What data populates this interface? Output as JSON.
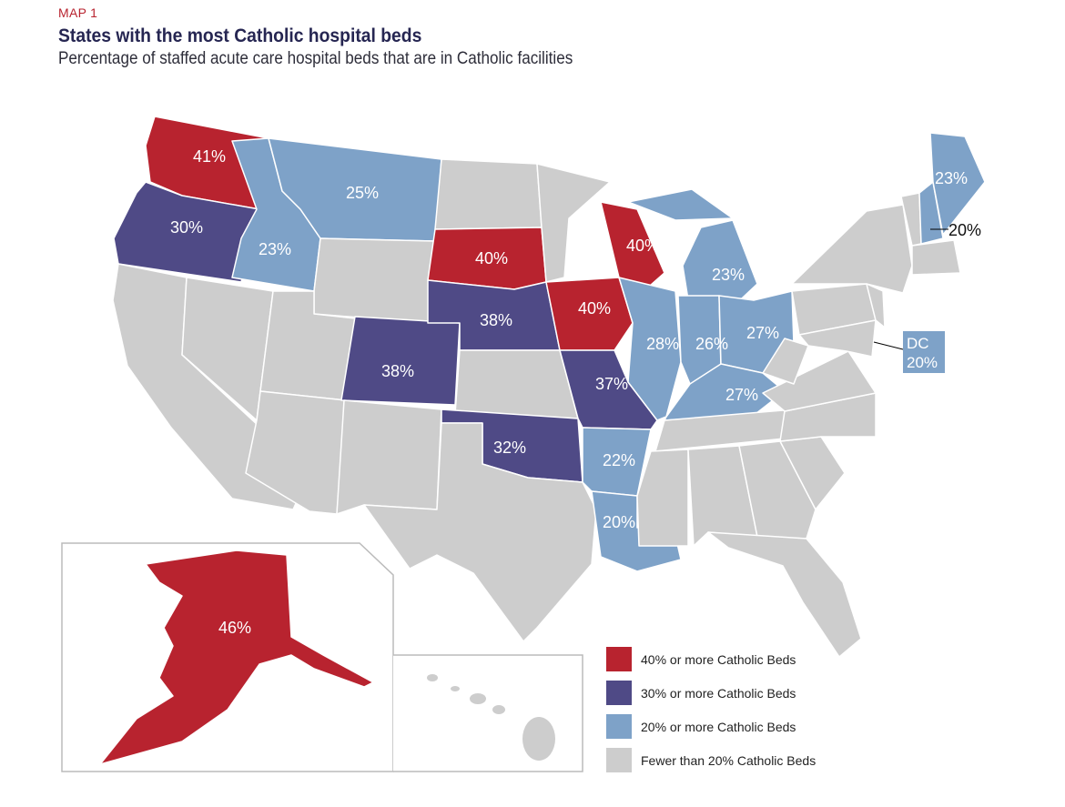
{
  "header": {
    "kicker": "MAP 1",
    "title": "States with the most Catholic hospital beds",
    "subtitle": "Percentage of staffed acute care hospital beds that are in Catholic facilities"
  },
  "colors": {
    "c40": "#b8232f",
    "c30": "#4f4a86",
    "c20": "#7ea2c8",
    "other": "#cdcdcd"
  },
  "legend": [
    {
      "key": "c40",
      "label": "40% or more Catholic Beds"
    },
    {
      "key": "c30",
      "label": "30% or more Catholic Beds"
    },
    {
      "key": "c20",
      "label": "20% or more Catholic Beds"
    },
    {
      "key": "other",
      "label": "Fewer than 20% Catholic Beds"
    }
  ],
  "states": {
    "WA": {
      "value": "41%",
      "cat": "c40"
    },
    "OR": {
      "value": "30%",
      "cat": "c30"
    },
    "MT": {
      "value": "25%",
      "cat": "c20"
    },
    "ID": {
      "value": "23%",
      "cat": "c20"
    },
    "SD": {
      "value": "40%",
      "cat": "c40"
    },
    "NE": {
      "value": "38%",
      "cat": "c30"
    },
    "CO": {
      "value": "38%",
      "cat": "c30"
    },
    "IA": {
      "value": "40%",
      "cat": "c40"
    },
    "WI": {
      "value": "40%",
      "cat": "c40"
    },
    "MI": {
      "value": "23%",
      "cat": "c20"
    },
    "IL": {
      "value": "28%",
      "cat": "c20"
    },
    "IN": {
      "value": "26%",
      "cat": "c20"
    },
    "OH": {
      "value": "27%",
      "cat": "c20"
    },
    "KY": {
      "value": "27%",
      "cat": "c20"
    },
    "MO": {
      "value": "37%",
      "cat": "c30"
    },
    "OK": {
      "value": "32%",
      "cat": "c30"
    },
    "AR": {
      "value": "22%",
      "cat": "c20"
    },
    "LA": {
      "value": "20%",
      "cat": "c20"
    },
    "ME": {
      "value": "23%",
      "cat": "c20"
    },
    "NH": {
      "value": "20%",
      "cat": "c20"
    },
    "AK": {
      "value": "46%",
      "cat": "c40"
    },
    "DC": {
      "name": "DC",
      "value": "20%",
      "cat": "c20"
    }
  }
}
